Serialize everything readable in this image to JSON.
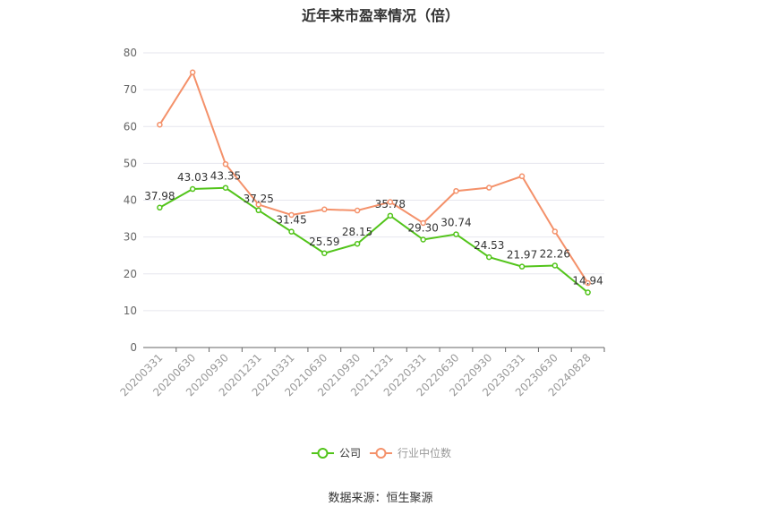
{
  "title": "近年来市盈率情况（倍）",
  "source": "数据来源：恒生聚源",
  "colors": {
    "company": "#52c41a",
    "industry": "#f4916a",
    "grid": "#e6e6ee",
    "axis": "#666666"
  },
  "chart_data": {
    "type": "line",
    "title": "近年来市盈率情况（倍）",
    "categories": [
      "20200331",
      "20200630",
      "20200930",
      "20201231",
      "20210331",
      "20210630",
      "20210930",
      "20211231",
      "20220331",
      "20220630",
      "20220930",
      "20230331",
      "20230630",
      "20240828"
    ],
    "ylim": [
      0,
      80
    ],
    "yticks": [
      0,
      10,
      20,
      30,
      40,
      50,
      60,
      70,
      80
    ],
    "grid": true,
    "legend": "bottom-center",
    "series": [
      {
        "name": "公司",
        "labels": true,
        "values": [
          37.98,
          43.03,
          43.35,
          37.25,
          31.45,
          25.59,
          28.15,
          35.78,
          29.3,
          30.74,
          24.53,
          21.97,
          22.26,
          14.94
        ],
        "value_labels": [
          "37.98",
          "43.03",
          "43.35",
          "37.25",
          "31.45",
          "25.59",
          "28.15",
          "35.78",
          "29.30",
          "30.74",
          "24.53",
          "21.97",
          "22.26",
          "14.94"
        ]
      },
      {
        "name": "行业中位数",
        "labels": false,
        "values": [
          60.5,
          74.7,
          49.8,
          38.8,
          36.0,
          37.5,
          37.2,
          39.5,
          33.8,
          42.5,
          43.4,
          46.5,
          31.5,
          17.5
        ]
      }
    ]
  }
}
